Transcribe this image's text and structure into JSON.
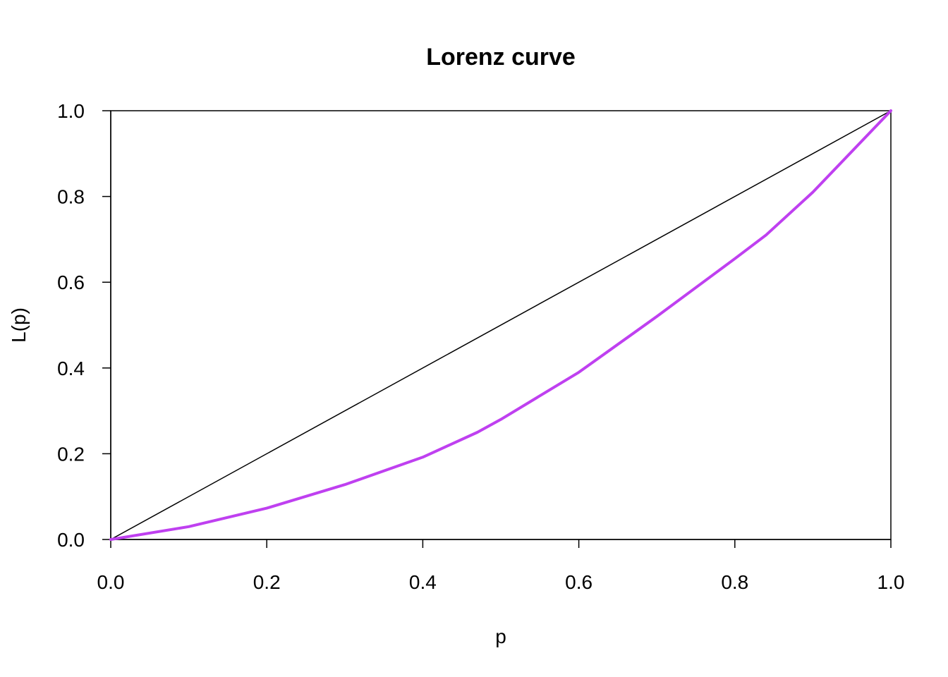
{
  "chart_data": {
    "type": "line",
    "title": "Lorenz curve",
    "xlabel": "p",
    "ylabel": "L(p)",
    "xlim": [
      0,
      1
    ],
    "ylim": [
      0,
      1
    ],
    "xticks": [
      "0.0",
      "0.2",
      "0.4",
      "0.6",
      "0.8",
      "1.0"
    ],
    "yticks": [
      "0.0",
      "0.2",
      "0.4",
      "0.6",
      "0.8",
      "1.0"
    ],
    "grid": false,
    "series": [
      {
        "color": "#000000",
        "x": [
          0,
          1
        ],
        "y": [
          0,
          1
        ]
      },
      {
        "color": "#bf40f0",
        "x": [
          0,
          0.1,
          0.2,
          0.3,
          0.4,
          0.47,
          0.5,
          0.6,
          0.7,
          0.8,
          0.84,
          0.9,
          1.0
        ],
        "y": [
          0,
          0.03,
          0.073,
          0.128,
          0.192,
          0.25,
          0.28,
          0.39,
          0.52,
          0.655,
          0.71,
          0.81,
          1.0
        ]
      }
    ]
  }
}
